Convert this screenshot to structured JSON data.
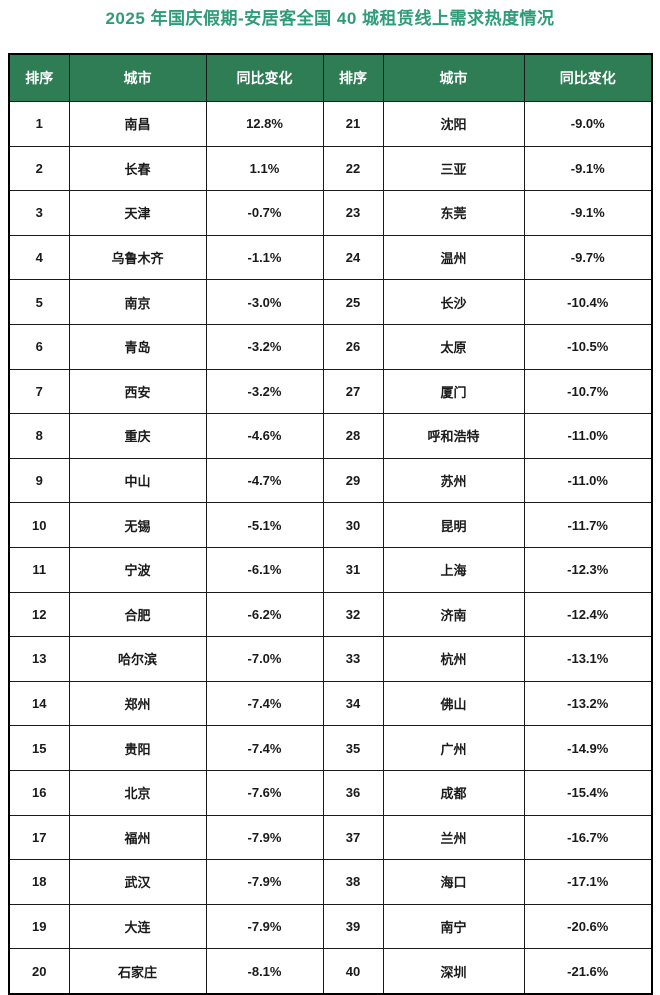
{
  "title": {
    "text": "2025 年国庆假期-安居客全国 40 城租赁线上需求热度情况",
    "color": "#2e9c76"
  },
  "colors": {
    "header_background": "#2e7d54",
    "header_text": "#ffffff",
    "cell_text": "#1a1a1a",
    "border": "#000000",
    "page_background": "#ffffff"
  },
  "table": {
    "column_headers": [
      "排序",
      "城市",
      "同比变化",
      "排序",
      "城市",
      "同比变化"
    ]
  },
  "chart_data": {
    "type": "table",
    "title": "2025 年国庆假期-安居客全国 40 城租赁线上需求热度情况",
    "columns": [
      "排序",
      "城市",
      "同比变化"
    ],
    "layout": "two-column table: ranks 1-20 in left half, ranks 21-40 in right half",
    "records": [
      {
        "rank": "1",
        "city": "南昌",
        "yoy_change": "12.8%"
      },
      {
        "rank": "2",
        "city": "长春",
        "yoy_change": "1.1%"
      },
      {
        "rank": "3",
        "city": "天津",
        "yoy_change": "-0.7%"
      },
      {
        "rank": "4",
        "city": "乌鲁木齐",
        "yoy_change": "-1.1%"
      },
      {
        "rank": "5",
        "city": "南京",
        "yoy_change": "-3.0%"
      },
      {
        "rank": "6",
        "city": "青岛",
        "yoy_change": "-3.2%"
      },
      {
        "rank": "7",
        "city": "西安",
        "yoy_change": "-3.2%"
      },
      {
        "rank": "8",
        "city": "重庆",
        "yoy_change": "-4.6%"
      },
      {
        "rank": "9",
        "city": "中山",
        "yoy_change": "-4.7%"
      },
      {
        "rank": "10",
        "city": "无锡",
        "yoy_change": "-5.1%"
      },
      {
        "rank": "11",
        "city": "宁波",
        "yoy_change": "-6.1%"
      },
      {
        "rank": "12",
        "city": "合肥",
        "yoy_change": "-6.2%"
      },
      {
        "rank": "13",
        "city": "哈尔滨",
        "yoy_change": "-7.0%"
      },
      {
        "rank": "14",
        "city": "郑州",
        "yoy_change": "-7.4%"
      },
      {
        "rank": "15",
        "city": "贵阳",
        "yoy_change": "-7.4%"
      },
      {
        "rank": "16",
        "city": "北京",
        "yoy_change": "-7.6%"
      },
      {
        "rank": "17",
        "city": "福州",
        "yoy_change": "-7.9%"
      },
      {
        "rank": "18",
        "city": "武汉",
        "yoy_change": "-7.9%"
      },
      {
        "rank": "19",
        "city": "大连",
        "yoy_change": "-7.9%"
      },
      {
        "rank": "20",
        "city": "石家庄",
        "yoy_change": "-8.1%"
      },
      {
        "rank": "21",
        "city": "沈阳",
        "yoy_change": "-9.0%"
      },
      {
        "rank": "22",
        "city": "三亚",
        "yoy_change": "-9.1%"
      },
      {
        "rank": "23",
        "city": "东莞",
        "yoy_change": "-9.1%"
      },
      {
        "rank": "24",
        "city": "温州",
        "yoy_change": "-9.7%"
      },
      {
        "rank": "25",
        "city": "长沙",
        "yoy_change": "-10.4%"
      },
      {
        "rank": "26",
        "city": "太原",
        "yoy_change": "-10.5%"
      },
      {
        "rank": "27",
        "city": "厦门",
        "yoy_change": "-10.7%"
      },
      {
        "rank": "28",
        "city": "呼和浩特",
        "yoy_change": "-11.0%"
      },
      {
        "rank": "29",
        "city": "苏州",
        "yoy_change": "-11.0%"
      },
      {
        "rank": "30",
        "city": "昆明",
        "yoy_change": "-11.7%"
      },
      {
        "rank": "31",
        "city": "上海",
        "yoy_change": "-12.3%"
      },
      {
        "rank": "32",
        "city": "济南",
        "yoy_change": "-12.4%"
      },
      {
        "rank": "33",
        "city": "杭州",
        "yoy_change": "-13.1%"
      },
      {
        "rank": "34",
        "city": "佛山",
        "yoy_change": "-13.2%"
      },
      {
        "rank": "35",
        "city": "广州",
        "yoy_change": "-14.9%"
      },
      {
        "rank": "36",
        "city": "成都",
        "yoy_change": "-15.4%"
      },
      {
        "rank": "37",
        "city": "兰州",
        "yoy_change": "-16.7%"
      },
      {
        "rank": "38",
        "city": "海口",
        "yoy_change": "-17.1%"
      },
      {
        "rank": "39",
        "city": "南宁",
        "yoy_change": "-20.6%"
      },
      {
        "rank": "40",
        "city": "深圳",
        "yoy_change": "-21.6%"
      }
    ]
  }
}
